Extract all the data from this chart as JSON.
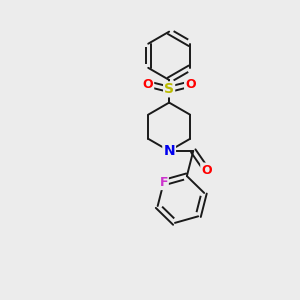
{
  "background_color": "#ececec",
  "bond_color": "#1a1a1a",
  "bond_width": 1.4,
  "atom_colors": {
    "N": "#0000ee",
    "O": "#ff0000",
    "S": "#bbbb00",
    "F": "#cc33cc"
  },
  "figsize": [
    3.0,
    3.0
  ],
  "dpi": 100
}
